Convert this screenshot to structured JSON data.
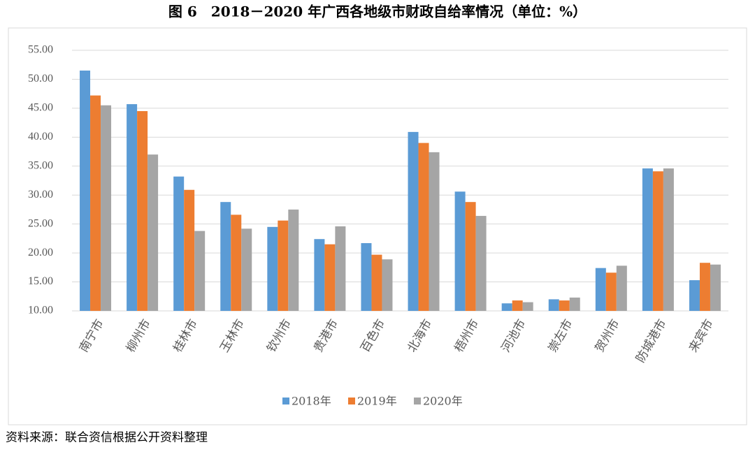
{
  "chart_data": {
    "type": "bar",
    "title": "图 6　2018－2020 年广西各地级市财政自给率情况（单位：%）",
    "source": "资料来源：联合资信根据公开资料整理",
    "categories": [
      "南宁市",
      "柳州市",
      "桂林市",
      "玉林市",
      "钦州市",
      "贵港市",
      "百色市",
      "北海市",
      "梧州市",
      "河池市",
      "崇左市",
      "贺州市",
      "防城港市",
      "来宾市"
    ],
    "series": [
      {
        "name": "2018年",
        "color": "#5b9bd5",
        "values": [
          51.5,
          45.7,
          33.2,
          28.8,
          24.5,
          22.4,
          21.7,
          40.9,
          30.6,
          11.3,
          12.0,
          17.4,
          34.6,
          15.3
        ]
      },
      {
        "name": "2019年",
        "color": "#ed7d31",
        "values": [
          47.2,
          44.5,
          30.9,
          26.6,
          25.6,
          21.5,
          19.7,
          39.0,
          28.8,
          11.8,
          11.8,
          16.6,
          34.1,
          18.3
        ]
      },
      {
        "name": "2020年",
        "color": "#a5a5a5",
        "values": [
          45.5,
          37.0,
          23.8,
          24.2,
          27.5,
          24.6,
          18.9,
          37.4,
          26.4,
          11.5,
          12.3,
          17.8,
          34.6,
          18.0
        ]
      }
    ],
    "ylim": [
      10,
      55
    ],
    "yticks": [
      {
        "value": 10,
        "label": "10.00"
      },
      {
        "value": 15,
        "label": "15.00"
      },
      {
        "value": 20,
        "label": "20.00"
      },
      {
        "value": 25,
        "label": "25.00"
      },
      {
        "value": 30,
        "label": "30.00"
      },
      {
        "value": 35,
        "label": "35.00"
      },
      {
        "value": 40,
        "label": "40.00"
      },
      {
        "value": 45,
        "label": "45.00"
      },
      {
        "value": 50,
        "label": "50.00"
      },
      {
        "value": 55,
        "label": "55.00"
      }
    ],
    "grid": true,
    "legend": "bottom"
  }
}
